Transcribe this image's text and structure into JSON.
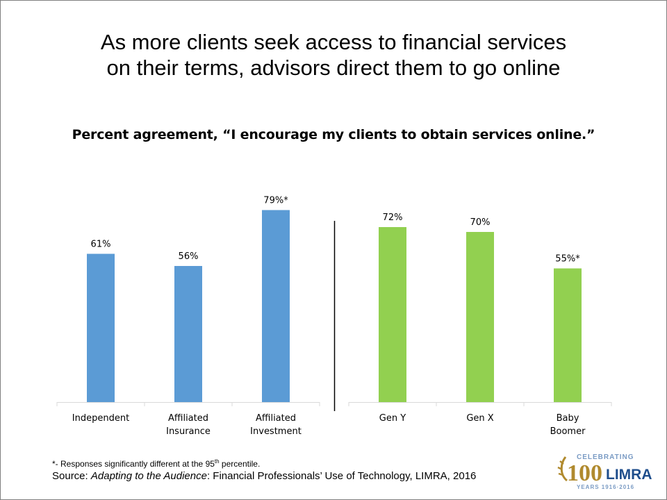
{
  "title_line1": "As more clients seek access to financial services",
  "title_line2": "on their terms, advisors direct them to go online",
  "footnote": {
    "prefix": "*- Responses significantly different at the 95",
    "sup": "th",
    "suffix": " percentile."
  },
  "source": {
    "label": "Source: ",
    "italic": "Adapting to the Audience",
    "rest": ": Financial Professionals’ Use of Technology, LIMRA, 2016"
  },
  "logo": {
    "top": "CELEBRATING",
    "number": "100",
    "brand": "LIMRA",
    "bottom": "YEARS 1916·2016"
  },
  "chart_data": {
    "type": "bar",
    "title": "Percent agreement, “I encourage my clients to obtain services online.”",
    "ylim": [
      0,
      100
    ],
    "grid": false,
    "groups": [
      {
        "color": "#5b9bd5",
        "categories": [
          [
            "Independent"
          ],
          [
            "Affiliated",
            "Insurance"
          ],
          [
            "Affiliated",
            "Investment"
          ]
        ],
        "values": [
          61,
          56,
          79
        ],
        "labels": [
          "61%",
          "56%",
          "79%*"
        ]
      },
      {
        "color": "#92d050",
        "categories": [
          [
            "Gen Y"
          ],
          [
            "Gen X"
          ],
          [
            "Baby",
            "Boomer"
          ]
        ],
        "values": [
          72,
          70,
          55
        ],
        "labels": [
          "72%",
          "70%",
          "55%*"
        ]
      }
    ]
  }
}
